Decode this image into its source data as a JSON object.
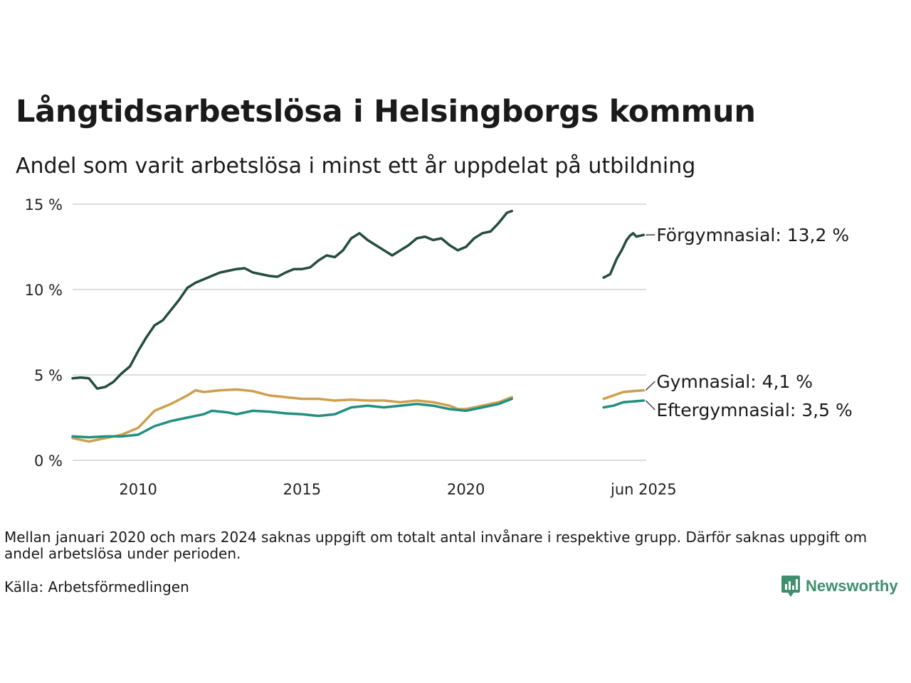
{
  "title": "Långtidsarbetslösa i Helsingborgs kommun",
  "subtitle": "Andel som varit arbetslösa i minst ett år uppdelat på utbildning",
  "footnote": "Mellan januari 2020 och mars 2024 saknas uppgift om totalt antal invånare i respektive grupp. Därför saknas uppgift om andel arbetslösa under perioden.",
  "source": "Källa: Arbetsförmedlingen",
  "brand": {
    "name": "Newsworthy",
    "icon": "bar-chart-speech-bubble-icon",
    "color": "#3f8f6f"
  },
  "chart_data": {
    "type": "line",
    "x_unit": "year",
    "xlim": [
      2008.0,
      2025.5
    ],
    "ylim": [
      0,
      15
    ],
    "y_ticks": [
      {
        "value": 0,
        "label": "0 %"
      },
      {
        "value": 5,
        "label": "5 %"
      },
      {
        "value": 10,
        "label": "10 %"
      },
      {
        "value": 15,
        "label": "15 %"
      }
    ],
    "x_ticks": [
      {
        "value": 2010,
        "label": "2010"
      },
      {
        "value": 2015,
        "label": "2015"
      },
      {
        "value": 2020,
        "label": "2020"
      },
      {
        "value": 2025.42,
        "label": "jun 2025"
      }
    ],
    "grid": "horizontal",
    "series": [
      {
        "name": "Förgymnasial",
        "end_label": "Förgymnasial: 13,2 %",
        "color": "#234d3f",
        "segments": [
          [
            [
              2008.0,
              4.8
            ],
            [
              2008.25,
              4.85
            ],
            [
              2008.5,
              4.8
            ],
            [
              2008.75,
              4.2
            ],
            [
              2009.0,
              4.3
            ],
            [
              2009.25,
              4.6
            ],
            [
              2009.5,
              5.1
            ],
            [
              2009.75,
              5.5
            ],
            [
              2010.0,
              6.4
            ],
            [
              2010.25,
              7.2
            ],
            [
              2010.5,
              7.9
            ],
            [
              2010.75,
              8.2
            ],
            [
              2011.0,
              8.8
            ],
            [
              2011.25,
              9.4
            ],
            [
              2011.5,
              10.1
            ],
            [
              2011.75,
              10.4
            ],
            [
              2012.0,
              10.6
            ],
            [
              2012.25,
              10.8
            ],
            [
              2012.5,
              11.0
            ],
            [
              2012.75,
              11.1
            ],
            [
              2013.0,
              11.2
            ],
            [
              2013.25,
              11.25
            ],
            [
              2013.5,
              11.0
            ],
            [
              2013.75,
              10.9
            ],
            [
              2014.0,
              10.8
            ],
            [
              2014.25,
              10.75
            ],
            [
              2014.5,
              11.0
            ],
            [
              2014.75,
              11.2
            ],
            [
              2015.0,
              11.2
            ],
            [
              2015.25,
              11.3
            ],
            [
              2015.5,
              11.7
            ],
            [
              2015.75,
              12.0
            ],
            [
              2016.0,
              11.9
            ],
            [
              2016.25,
              12.3
            ],
            [
              2016.5,
              13.0
            ],
            [
              2016.75,
              13.3
            ],
            [
              2017.0,
              12.9
            ],
            [
              2017.25,
              12.6
            ],
            [
              2017.5,
              12.3
            ],
            [
              2017.75,
              12.0
            ],
            [
              2018.0,
              12.3
            ],
            [
              2018.25,
              12.6
            ],
            [
              2018.5,
              13.0
            ],
            [
              2018.75,
              13.1
            ],
            [
              2019.0,
              12.9
            ],
            [
              2019.25,
              13.0
            ],
            [
              2019.5,
              12.6
            ],
            [
              2019.75,
              12.3
            ],
            [
              2020.0,
              12.5
            ],
            [
              2020.25,
              13.0
            ],
            [
              2020.5,
              13.3
            ],
            [
              2020.75,
              13.4
            ],
            [
              2021.0,
              13.9
            ],
            [
              2021.25,
              14.5
            ],
            [
              2021.4,
              14.6
            ]
          ],
          [
            [
              2024.2,
              10.7
            ],
            [
              2024.4,
              10.9
            ],
            [
              2024.6,
              11.8
            ],
            [
              2024.75,
              12.3
            ],
            [
              2024.9,
              12.9
            ],
            [
              2025.0,
              13.15
            ],
            [
              2025.1,
              13.3
            ],
            [
              2025.2,
              13.1
            ],
            [
              2025.42,
              13.2
            ]
          ]
        ]
      },
      {
        "name": "Gymnasial",
        "end_label": "Gymnasial:  4,1 %",
        "color": "#cf9f4f",
        "segments": [
          [
            [
              2008.0,
              1.3
            ],
            [
              2008.25,
              1.2
            ],
            [
              2008.5,
              1.1
            ],
            [
              2008.75,
              1.2
            ],
            [
              2009.0,
              1.3
            ],
            [
              2009.5,
              1.5
            ],
            [
              2010.0,
              1.9
            ],
            [
              2010.25,
              2.4
            ],
            [
              2010.5,
              2.9
            ],
            [
              2011.0,
              3.3
            ],
            [
              2011.5,
              3.8
            ],
            [
              2011.75,
              4.1
            ],
            [
              2012.0,
              4.0
            ],
            [
              2012.5,
              4.1
            ],
            [
              2013.0,
              4.15
            ],
            [
              2013.5,
              4.05
            ],
            [
              2014.0,
              3.8
            ],
            [
              2014.5,
              3.7
            ],
            [
              2015.0,
              3.6
            ],
            [
              2015.5,
              3.6
            ],
            [
              2016.0,
              3.5
            ],
            [
              2016.5,
              3.55
            ],
            [
              2017.0,
              3.5
            ],
            [
              2017.5,
              3.5
            ],
            [
              2018.0,
              3.4
            ],
            [
              2018.5,
              3.5
            ],
            [
              2019.0,
              3.4
            ],
            [
              2019.5,
              3.2
            ],
            [
              2019.75,
              3.0
            ],
            [
              2020.0,
              3.0
            ],
            [
              2020.5,
              3.2
            ],
            [
              2021.0,
              3.4
            ],
            [
              2021.4,
              3.7
            ]
          ],
          [
            [
              2024.2,
              3.6
            ],
            [
              2024.5,
              3.8
            ],
            [
              2024.8,
              4.0
            ],
            [
              2025.1,
              4.05
            ],
            [
              2025.42,
              4.1
            ]
          ]
        ]
      },
      {
        "name": "Eftergymnasial",
        "end_label": "Eftergymnasial:  3,5 %",
        "color": "#20907f",
        "segments": [
          [
            [
              2008.0,
              1.4
            ],
            [
              2008.5,
              1.35
            ],
            [
              2009.0,
              1.4
            ],
            [
              2009.5,
              1.4
            ],
            [
              2010.0,
              1.5
            ],
            [
              2010.5,
              2.0
            ],
            [
              2011.0,
              2.3
            ],
            [
              2011.5,
              2.5
            ],
            [
              2012.0,
              2.7
            ],
            [
              2012.25,
              2.9
            ],
            [
              2012.75,
              2.8
            ],
            [
              2013.0,
              2.7
            ],
            [
              2013.5,
              2.9
            ],
            [
              2014.0,
              2.85
            ],
            [
              2014.5,
              2.75
            ],
            [
              2015.0,
              2.7
            ],
            [
              2015.5,
              2.6
            ],
            [
              2016.0,
              2.7
            ],
            [
              2016.5,
              3.1
            ],
            [
              2017.0,
              3.2
            ],
            [
              2017.5,
              3.1
            ],
            [
              2018.0,
              3.2
            ],
            [
              2018.5,
              3.3
            ],
            [
              2019.0,
              3.2
            ],
            [
              2019.5,
              3.0
            ],
            [
              2020.0,
              2.9
            ],
            [
              2020.5,
              3.1
            ],
            [
              2021.0,
              3.3
            ],
            [
              2021.4,
              3.6
            ]
          ],
          [
            [
              2024.2,
              3.1
            ],
            [
              2024.5,
              3.2
            ],
            [
              2024.8,
              3.4
            ],
            [
              2025.1,
              3.45
            ],
            [
              2025.42,
              3.5
            ]
          ]
        ]
      }
    ]
  }
}
